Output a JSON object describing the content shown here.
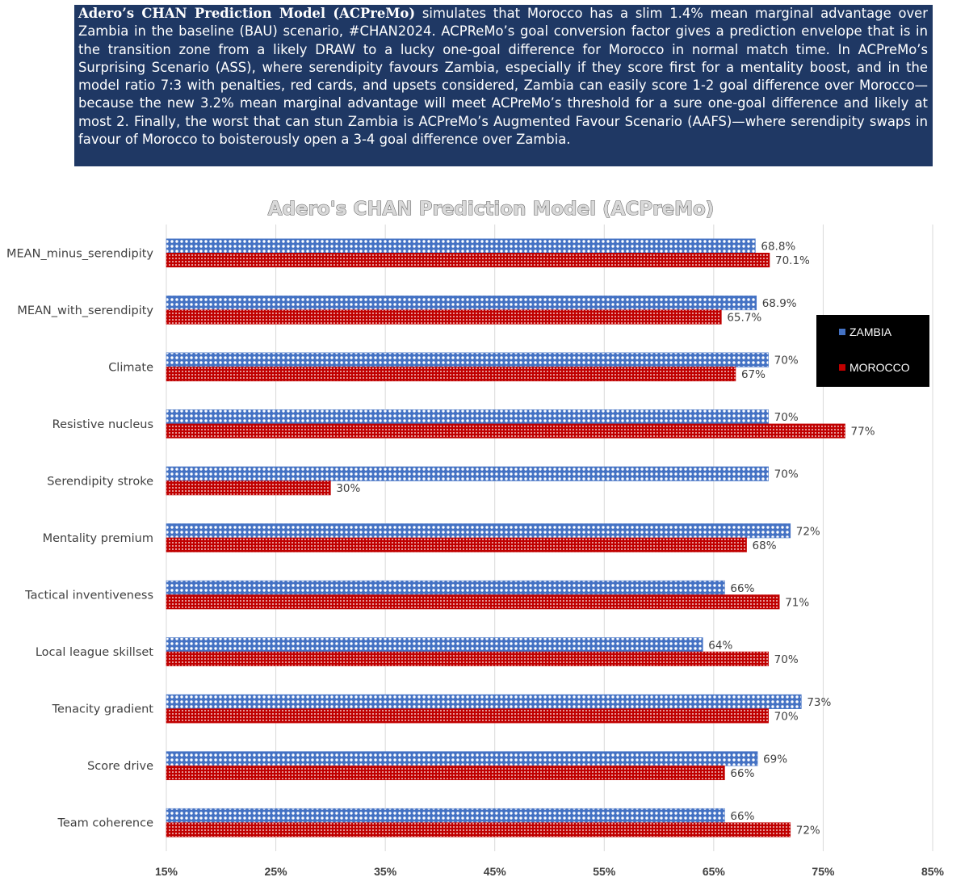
{
  "intro": {
    "lead": "Adero’s CHAN Prediction Model (ACPreMo)",
    "body": " simulates that Morocco has a slim 1.4% mean marginal advantage over Zambia in the baseline (BAU) scenario,  #CHAN2024. ACPReMo’s goal conversion factor gives a prediction envelope that is in the transition zone from a likely DRAW to a lucky one-goal difference for Morocco in normal match time. In ACPreMo’s Surprising Scenario (ASS), where serendipity favours Zambia, especially if they score first for a mentality boost, and in the model ratio 7:3 with penalties, red cards, and upsets considered, Zambia can easily score 1-2 goal difference over Morocco—because the new 3.2% mean marginal advantage will meet ACPreMo’s threshold for a sure one-goal difference and likely at most 2. Finally, the worst that can stun Zambia is ACPreMo’s Augmented Favour Scenario (AAFS)—where serendipity swaps in favour of Morocco to boisterously open a 3-4 goal difference over Zambia."
  },
  "colors": {
    "intro_bg": "#1f3864",
    "zambia": "#4472c4",
    "morocco": "#c00000"
  },
  "chart_data": {
    "type": "bar",
    "orientation": "horizontal",
    "title": "Adero's CHAN Prediction Model (ACPreMo)",
    "xlabel": "",
    "ylabel": "",
    "xlim": [
      15,
      85
    ],
    "x_ticks": [
      15,
      25,
      35,
      45,
      55,
      65,
      75,
      85
    ],
    "x_tick_labels": [
      "15%",
      "25%",
      "35%",
      "45%",
      "55%",
      "65%",
      "75%",
      "85%"
    ],
    "grid": true,
    "legend_position": "right",
    "categories": [
      "MEAN_minus_serendipity",
      "MEAN_with_serendipity",
      "Climate",
      "Resistive nucleus",
      "Serendipity stroke",
      "Mentality premium",
      "Tactical inventiveness",
      "Local league skillset",
      "Tenacity gradient",
      "Score drive",
      "Team coherence"
    ],
    "series": [
      {
        "name": "ZAMBIA",
        "color": "#4472c4",
        "values": [
          68.8,
          68.9,
          70,
          70,
          70,
          72,
          66,
          64,
          73,
          69,
          66
        ],
        "labels": [
          "68.8%",
          "68.9%",
          "70%",
          "70%",
          "70%",
          "72%",
          "66%",
          "64%",
          "73%",
          "69%",
          "66%"
        ]
      },
      {
        "name": "MOROCCO",
        "color": "#c00000",
        "values": [
          70.1,
          65.7,
          67,
          77,
          30,
          68,
          71,
          70,
          70,
          66,
          72
        ],
        "labels": [
          "70.1%",
          "65.7%",
          "67%",
          "77%",
          "30%",
          "68%",
          "71%",
          "70%",
          "70%",
          "66%",
          "72%"
        ]
      }
    ]
  }
}
